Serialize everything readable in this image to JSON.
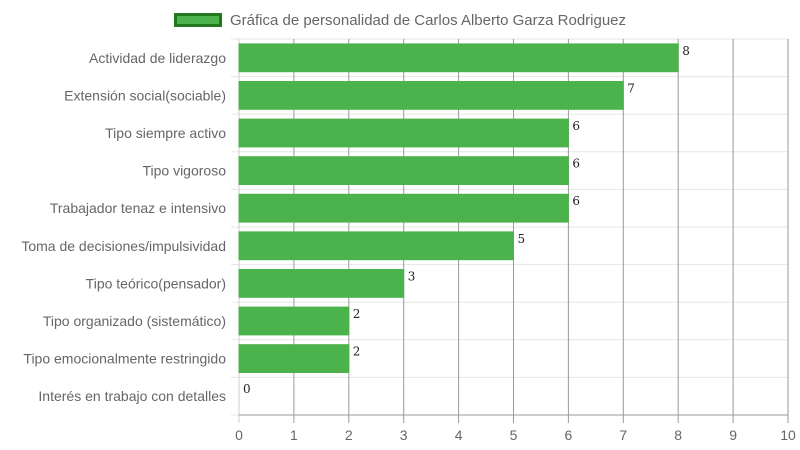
{
  "chart_data": {
    "type": "bar",
    "orientation": "horizontal",
    "categories": [
      "Actividad de liderazgo",
      "Extensión social(sociable)",
      "Tipo siempre activo",
      "Tipo vigoroso",
      "Trabajador tenaz e intensivo",
      "Toma de decisiones/impulsividad",
      "Tipo teórico(pensador)",
      "Tipo organizado (sistemático)",
      "Tipo emocionalmente restringido",
      "Interés en trabajo con detalles"
    ],
    "series": [
      {
        "name": "Gráfica de personalidad de Carlos Alberto Garza Rodriguez",
        "values": [
          8,
          7,
          6,
          6,
          6,
          5,
          3,
          2,
          2,
          0
        ],
        "color": "#4cb34c",
        "border_color": "#1f7a1f"
      }
    ],
    "x_ticks": [
      "0",
      "1",
      "2",
      "3",
      "4",
      "5",
      "6",
      "7",
      "8",
      "9",
      "10"
    ],
    "xlim": [
      0,
      10
    ],
    "grid": true,
    "legend": "top"
  }
}
